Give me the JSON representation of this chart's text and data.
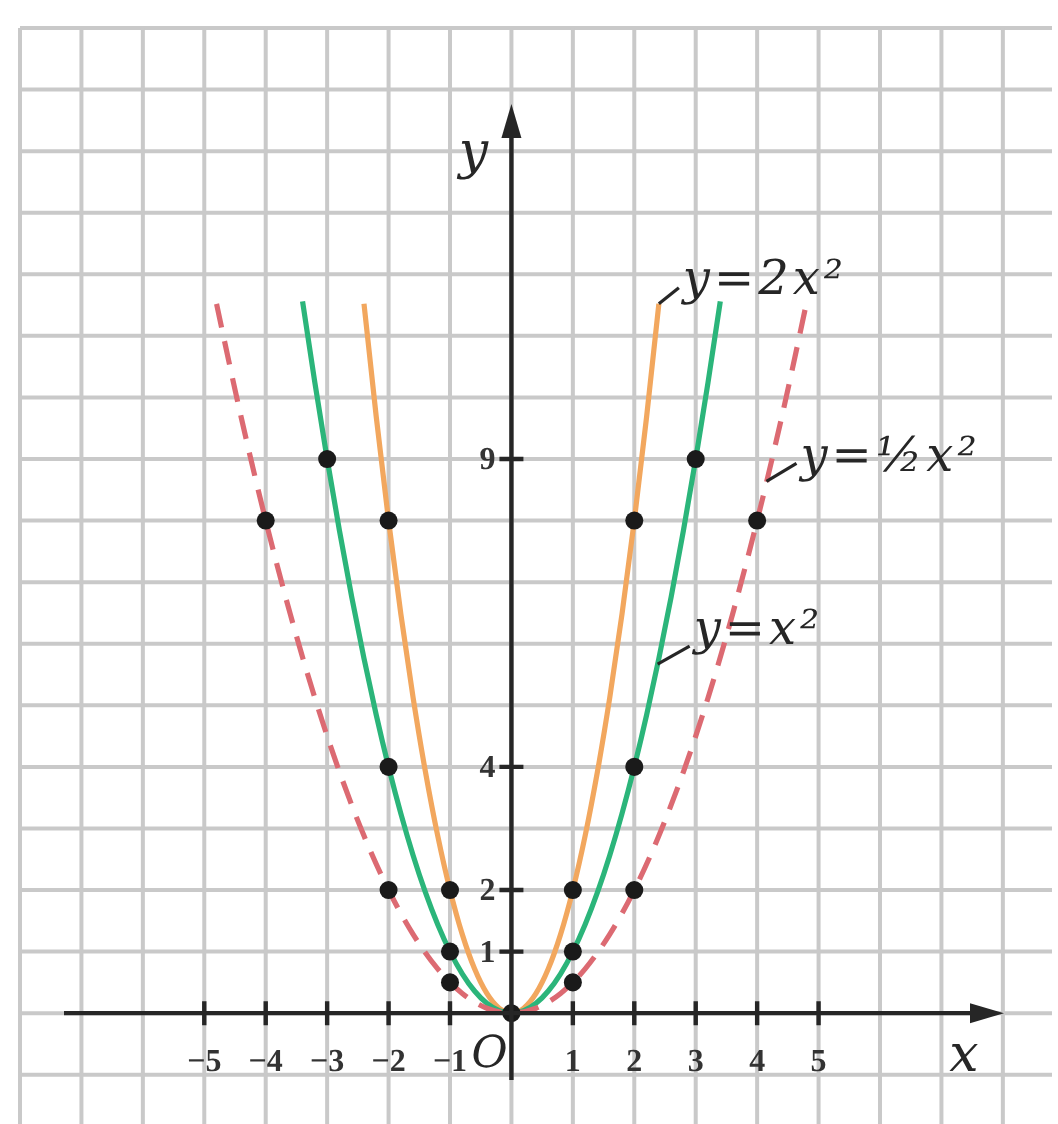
{
  "chart_data": {
    "type": "line",
    "xlabel": "x",
    "ylabel": "y",
    "xlim": [
      -8,
      8.8
    ],
    "ylim": [
      -1.8,
      16
    ],
    "xticks": [
      {
        "value": -8,
        "label": null
      },
      {
        "value": -7,
        "label": null
      },
      {
        "value": -6,
        "label": null
      },
      {
        "value": -5,
        "label": "−5"
      },
      {
        "value": -4,
        "label": "−4"
      },
      {
        "value": -3,
        "label": "−3"
      },
      {
        "value": -2,
        "label": "−2"
      },
      {
        "value": -1,
        "label": "−1"
      },
      {
        "value": 0,
        "label": null
      },
      1,
      2,
      3,
      4,
      5,
      {
        "value": 6,
        "label": null
      },
      {
        "value": 7,
        "label": null
      },
      {
        "value": 8,
        "label": null
      }
    ],
    "yticks": [
      {
        "value": -1,
        "label": null
      },
      {
        "value": 0,
        "label": null
      },
      1,
      2,
      {
        "value": 3,
        "label": null
      },
      4,
      {
        "value": 5,
        "label": null
      },
      {
        "value": 6,
        "label": null
      },
      {
        "value": 7,
        "label": null
      },
      {
        "value": 8,
        "label": null
      },
      9,
      {
        "value": 10,
        "label": null
      },
      {
        "value": 11,
        "label": null
      },
      {
        "value": 12,
        "label": null
      },
      {
        "value": 13,
        "label": null
      },
      {
        "value": 14,
        "label": null
      },
      {
        "value": 15,
        "label": null
      },
      {
        "value": 16,
        "label": null
      }
    ],
    "grid": true,
    "annotations": [
      {
        "text": "O",
        "x": 0,
        "y": 0
      }
    ],
    "series": [
      {
        "name": "y=2x²",
        "color": "#f2a75e",
        "line_style": "solid",
        "marker": "none",
        "x": [
          -2.4,
          -2.2,
          -2,
          -1.8,
          -1.6,
          -1.4,
          -1.2,
          -1,
          -0.8,
          -0.6,
          -0.4,
          -0.2,
          0,
          0.2,
          0.4,
          0.6,
          0.8,
          1,
          1.2,
          1.4,
          1.6,
          1.8,
          2,
          2.2,
          2.4
        ],
        "values": [
          11.52,
          9.68,
          8,
          6.48,
          5.12,
          3.92,
          2.88,
          2,
          1.28,
          0.72,
          0.32,
          0.08,
          0,
          0.08,
          0.32,
          0.72,
          1.28,
          2,
          2.88,
          3.92,
          5.12,
          6.48,
          8,
          9.68,
          11.52
        ]
      },
      {
        "name": "y=x²",
        "color": "#2bb57a",
        "line_style": "solid",
        "marker": "none",
        "x": [
          -3.4,
          -3.2,
          -3,
          -2.8,
          -2.6,
          -2.4,
          -2.2,
          -2,
          -1.8,
          -1.6,
          -1.4,
          -1.2,
          -1,
          -0.8,
          -0.6,
          -0.4,
          -0.2,
          0,
          0.2,
          0.4,
          0.6,
          0.8,
          1,
          1.2,
          1.4,
          1.6,
          1.8,
          2,
          2.2,
          2.4,
          2.6,
          2.8,
          3,
          3.2,
          3.4
        ],
        "values": [
          11.56,
          10.24,
          9,
          7.84,
          6.76,
          5.76,
          4.84,
          4,
          3.24,
          2.56,
          1.96,
          1.44,
          1,
          0.64,
          0.36,
          0.16,
          0.04,
          0,
          0.04,
          0.16,
          0.36,
          0.64,
          1,
          1.44,
          1.96,
          2.56,
          3.24,
          4,
          4.84,
          5.76,
          6.76,
          7.84,
          9,
          10.24,
          11.56
        ]
      },
      {
        "name": "y=½x²",
        "color": "#dc6a72",
        "line_style": "dashed",
        "marker": "none",
        "x": [
          -4.8,
          -4.4,
          -4,
          -3.6,
          -3.2,
          -2.8,
          -2.4,
          -2,
          -1.6,
          -1.2,
          -1,
          -0.8,
          -0.4,
          0,
          0.4,
          0.8,
          1,
          1.2,
          1.6,
          2,
          2.4,
          2.8,
          3.2,
          3.6,
          4,
          4.4,
          4.8
        ],
        "values": [
          11.52,
          9.68,
          8,
          6.48,
          5.12,
          3.92,
          2.88,
          2,
          1.28,
          0.72,
          0.5,
          0.32,
          0.08,
          0,
          0.08,
          0.32,
          0.5,
          0.72,
          1.28,
          2,
          2.88,
          3.92,
          5.12,
          6.48,
          8,
          9.68,
          11.52
        ]
      },
      {
        "type": "scatter",
        "color": "#1a1a1a",
        "marker": "circle",
        "x": [
          -4,
          -3,
          -2,
          -2,
          -2,
          -1,
          -1,
          -1,
          0,
          1,
          1,
          1,
          2,
          2,
          2,
          3,
          4
        ],
        "values": [
          8,
          9,
          8,
          4,
          2,
          2,
          1,
          0.5,
          0,
          2,
          1,
          0.5,
          8,
          4,
          2,
          9,
          8
        ]
      }
    ]
  }
}
